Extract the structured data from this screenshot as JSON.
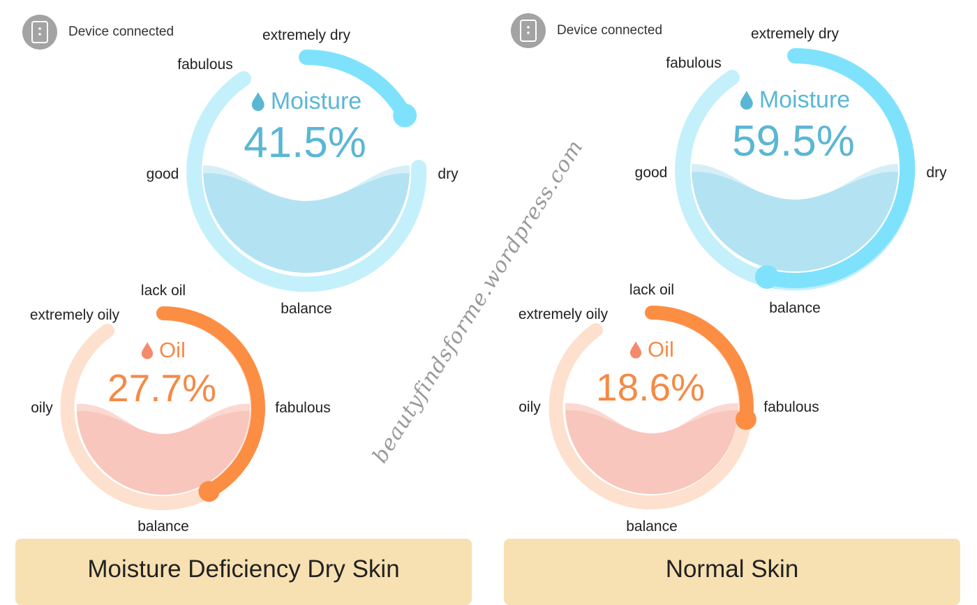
{
  "colors": {
    "moisture_track": "#c3f0fb",
    "moisture_fill": "#7fe2fd",
    "moisture_liquid": "#b3e3f2",
    "moisture_text": "#5ab7d4",
    "oil_track": "#fde0cd",
    "oil_fill": "#fc8e44",
    "oil_liquid": "#f8c6bc",
    "oil_text": "#f58a46",
    "banner": "#f7e0b2",
    "device_icon": "#a3a3a3"
  },
  "watermark": "beautyfindsforme.wordpress.com",
  "panels": [
    {
      "device_label": "Device connected",
      "moisture": {
        "title": "Moisture",
        "value": "41.5%",
        "level": 0.17,
        "labels": {
          "top": "extremely dry",
          "right": "dry",
          "bottom": "balance",
          "left": "good",
          "top_left": "fabulous"
        }
      },
      "oil": {
        "title": "Oil",
        "value": "27.7%",
        "level": 0.42,
        "labels": {
          "top": "lack oil",
          "right": "fabulous",
          "bottom": "balance",
          "left": "oily",
          "top_left": "extremely oily"
        }
      },
      "skin_type": "Moisture Deficiency Dry Skin"
    },
    {
      "device_label": "Device connected",
      "moisture": {
        "title": "Moisture",
        "value": "59.5%",
        "level": 0.54,
        "labels": {
          "top": "extremely dry",
          "right": "dry",
          "bottom": "balance",
          "left": "good",
          "top_left": "fabulous"
        }
      },
      "oil": {
        "title": "Oil",
        "value": "18.6%",
        "level": 0.27,
        "labels": {
          "top": "lack oil",
          "right": "fabulous",
          "bottom": "balance",
          "left": "oily",
          "top_left": "extremely oily"
        }
      },
      "skin_type": "Normal Skin"
    }
  ]
}
